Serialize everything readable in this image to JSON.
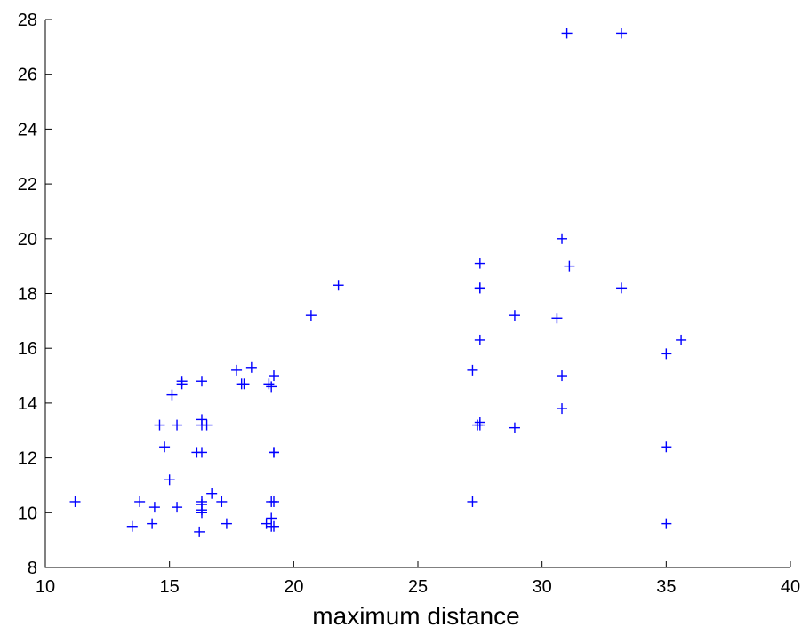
{
  "colors": {
    "marker": "#0000ff",
    "axis": "#000000",
    "background": "#ffffff"
  },
  "chart_data": {
    "type": "scatter",
    "title": "",
    "xlabel": "maximum distance",
    "ylabel": "",
    "xlim": [
      10,
      40
    ],
    "ylim": [
      8,
      28
    ],
    "xticks": [
      10,
      15,
      20,
      25,
      30,
      35,
      40
    ],
    "yticks": [
      8,
      10,
      12,
      14,
      16,
      18,
      20,
      22,
      24,
      26,
      28
    ],
    "grid": false,
    "marker": "+",
    "series": [
      {
        "x": [
          11.2,
          13.5,
          13.8,
          14.3,
          14.4,
          14.6,
          14.8,
          15.0,
          15.1,
          15.3,
          15.3,
          15.5,
          15.5,
          16.1,
          16.2,
          16.3,
          16.3,
          16.3,
          16.3,
          16.3,
          16.3,
          16.3,
          16.3,
          16.5,
          16.7,
          17.1,
          17.3,
          17.7,
          17.9,
          18.0,
          18.3,
          18.9,
          19.0,
          19.1,
          19.1,
          19.1,
          19.1,
          19.2,
          19.2,
          19.2,
          19.2,
          19.2,
          20.7,
          21.8,
          27.2,
          27.2,
          27.4,
          27.5,
          27.5,
          27.5,
          27.5,
          27.5,
          27.5,
          28.9,
          28.9,
          30.6,
          30.8,
          30.8,
          30.8,
          31.0,
          31.1,
          33.2,
          33.2,
          35.0,
          35.0,
          35.0,
          35.6
        ],
        "y": [
          10.4,
          9.5,
          10.4,
          9.6,
          10.2,
          13.2,
          12.4,
          11.2,
          14.3,
          10.2,
          13.2,
          14.8,
          14.7,
          12.2,
          9.3,
          10.1,
          10.3,
          10.4,
          12.2,
          13.2,
          13.4,
          14.8,
          10.0,
          13.2,
          10.7,
          10.4,
          9.6,
          15.2,
          14.7,
          14.7,
          15.3,
          9.6,
          14.7,
          9.5,
          9.8,
          10.4,
          14.6,
          15.0,
          12.2,
          12.2,
          10.4,
          9.5,
          17.2,
          18.3,
          15.2,
          10.4,
          13.2,
          18.2,
          18.2,
          19.1,
          16.3,
          13.2,
          13.3,
          17.2,
          13.1,
          17.1,
          20.0,
          15.0,
          13.8,
          27.5,
          19.0,
          27.5,
          18.2,
          15.8,
          12.4,
          9.6,
          16.3
        ]
      }
    ]
  }
}
